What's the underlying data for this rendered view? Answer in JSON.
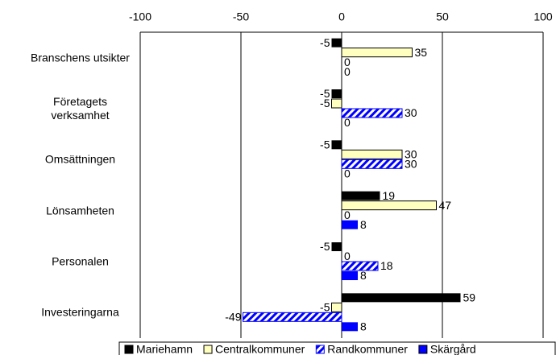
{
  "chart_data": {
    "type": "hbar",
    "categories": [
      "Branschens utsikter",
      "Företagets verksamhet",
      "Omsättningen",
      "Lönsamheten",
      "Personalen",
      "Investeringarna"
    ],
    "series": [
      {
        "name": "Mariehamn",
        "color": "#000000",
        "values": [
          -5,
          -5,
          -5,
          19,
          -5,
          59
        ]
      },
      {
        "name": "Centralkommuner",
        "color": "#ffffc0",
        "values": [
          35,
          -5,
          30,
          47,
          0,
          -5
        ]
      },
      {
        "name": "Randkommuner",
        "color": "#0000ff",
        "hatch": true,
        "values": [
          0,
          30,
          30,
          0,
          18,
          -49
        ]
      },
      {
        "name": "Skärgård",
        "color": "#0000ff",
        "values": [
          0,
          0,
          0,
          8,
          8,
          8
        ]
      }
    ],
    "xlim": [
      -100,
      100
    ],
    "xticks": [
      -100,
      -50,
      0,
      50,
      100
    ],
    "grid": true
  }
}
